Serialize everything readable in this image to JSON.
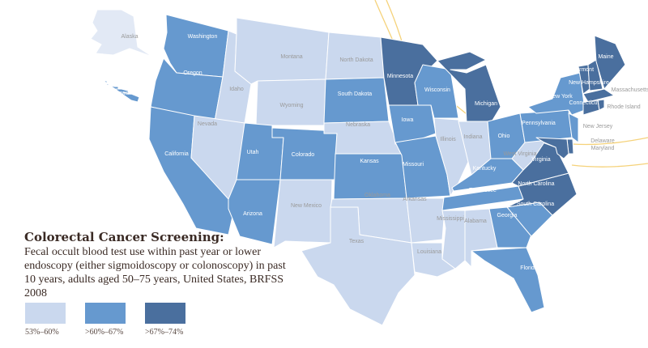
{
  "title": "Colorectal Cancer Screening:",
  "subtitle": "Fecal occult blood test use within past year or lower endoscopy (either sigmoidoscopy or colonoscopy) in past 10 years, adults aged 50–75 years, United States, BRFSS 2008",
  "colors": {
    "low": "#cad8ee",
    "mid": "#6699cf",
    "high": "#4a6f9e",
    "alaska": "#e2e9f5",
    "orbit": "#f5d27a",
    "label_light": "#9a9a9a",
    "label_dark": "#ffffff"
  },
  "legend": [
    {
      "key": "low",
      "label": "53%–60%"
    },
    {
      "key": "mid",
      "label": ">60%–67%"
    },
    {
      "key": "high",
      "label": ">67%–74%"
    }
  ],
  "states": [
    {
      "name": "Alaska",
      "category": "low"
    },
    {
      "name": "Hawaii",
      "category": "mid"
    },
    {
      "name": "Washington",
      "category": "mid"
    },
    {
      "name": "Oregon",
      "category": "mid"
    },
    {
      "name": "California",
      "category": "mid"
    },
    {
      "name": "Idaho",
      "category": "low"
    },
    {
      "name": "Nevada",
      "category": "low"
    },
    {
      "name": "Montana",
      "category": "low"
    },
    {
      "name": "Wyoming",
      "category": "low"
    },
    {
      "name": "Utah",
      "category": "mid"
    },
    {
      "name": "Colorado",
      "category": "mid"
    },
    {
      "name": "Arizona",
      "category": "mid"
    },
    {
      "name": "New Mexico",
      "category": "low"
    },
    {
      "name": "North Dakota",
      "category": "low"
    },
    {
      "name": "South Dakota",
      "category": "mid"
    },
    {
      "name": "Nebraska",
      "category": "low"
    },
    {
      "name": "Kansas",
      "category": "mid"
    },
    {
      "name": "Oklahoma",
      "category": "low"
    },
    {
      "name": "Texas",
      "category": "low"
    },
    {
      "name": "Minnesota",
      "category": "high"
    },
    {
      "name": "Iowa",
      "category": "mid"
    },
    {
      "name": "Missouri",
      "category": "mid"
    },
    {
      "name": "Arkansas",
      "category": "low"
    },
    {
      "name": "Louisiana",
      "category": "low"
    },
    {
      "name": "Wisconsin",
      "category": "mid"
    },
    {
      "name": "Illinois",
      "category": "low"
    },
    {
      "name": "Michigan",
      "category": "high"
    },
    {
      "name": "Indiana",
      "category": "low"
    },
    {
      "name": "Ohio",
      "category": "mid"
    },
    {
      "name": "Kentucky",
      "category": "mid"
    },
    {
      "name": "Tennessee",
      "category": "mid"
    },
    {
      "name": "Mississippi",
      "category": "low"
    },
    {
      "name": "Alabama",
      "category": "low"
    },
    {
      "name": "Georgia",
      "category": "mid"
    },
    {
      "name": "Florida",
      "category": "mid"
    },
    {
      "name": "South Carolina",
      "category": "mid"
    },
    {
      "name": "North Carolina",
      "category": "high"
    },
    {
      "name": "Virginia",
      "category": "high"
    },
    {
      "name": "West Virginia",
      "category": "low"
    },
    {
      "name": "Pennsylvania",
      "category": "mid"
    },
    {
      "name": "New York",
      "category": "mid"
    },
    {
      "name": "New Jersey",
      "category": "mid"
    },
    {
      "name": "Delaware",
      "category": "high"
    },
    {
      "name": "Maryland",
      "category": "high"
    },
    {
      "name": "Vermont",
      "category": "high"
    },
    {
      "name": "New Hampshire",
      "category": "high"
    },
    {
      "name": "Maine",
      "category": "high"
    },
    {
      "name": "Massachusetts",
      "category": "high"
    },
    {
      "name": "Connecticut",
      "category": "high"
    },
    {
      "name": "Rhode Island",
      "category": "high"
    }
  ]
}
